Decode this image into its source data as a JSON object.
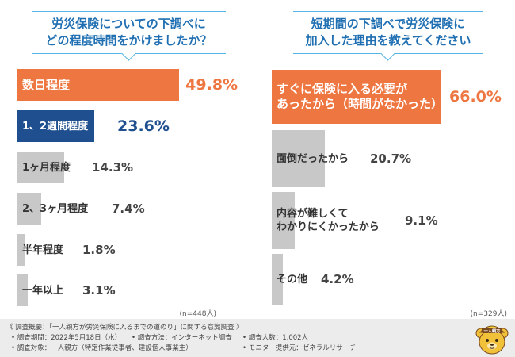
{
  "colors": {
    "title": "#1f6fb2",
    "rule": "#55b5e5",
    "orange": "#ee7640",
    "navy": "#1f4f8f",
    "gray": "#c8c8c8",
    "value_gray": "#444444",
    "footer_bg": "#ececec"
  },
  "chart_data": [
    {
      "type": "bar",
      "orientation": "horizontal",
      "title_lines": [
        "労災保険についての下調べに",
        "どの程度時間をかけましたか？"
      ],
      "categories": [
        "数日程度",
        "1、2週間程度",
        "1ヶ月程度",
        "2、3ヶ月程度",
        "半年程度",
        "一年以上"
      ],
      "values": [
        49.8,
        23.6,
        14.3,
        7.4,
        1.8,
        3.1
      ],
      "value_labels": [
        "49.8%",
        "23.6%",
        "14.3%",
        "7.4%",
        "1.8%",
        "3.1%"
      ],
      "xlim": [
        0,
        100
      ],
      "note": "(n=448人)"
    },
    {
      "type": "bar",
      "orientation": "horizontal",
      "title_lines": [
        "短期間の下調べで労災保険に",
        "加入した理由を教えてください"
      ],
      "categories": [
        "すぐに保険に入る必要が\nあったから（時間がなかった）",
        "面倒だったから",
        "内容が難しくて\nわかりにくかったから",
        "その他"
      ],
      "values": [
        66.0,
        20.7,
        9.1,
        4.2
      ],
      "value_labels": [
        "66.0%",
        "20.7%",
        "9.1%",
        "4.2%"
      ],
      "xlim": [
        0,
        100
      ],
      "note": "(n=329人)"
    }
  ],
  "survey": {
    "heading": "《 調査概要：「一人親方が労災保険に入るまでの道のり」に関する意識調査 》",
    "items": [
      "• 調査期間：2022年5月18日（水）",
      "• 調査方法：インターネット調査",
      "• 調査人数：1,002人",
      "• 調査対象：一人親方（特定作業従事者、建設個人事業主）",
      "• モニター提供元：ゼネラルリサーチ"
    ]
  },
  "mascot": {
    "badge_text": "一人親方",
    "icon": "bear-mascot-icon"
  }
}
